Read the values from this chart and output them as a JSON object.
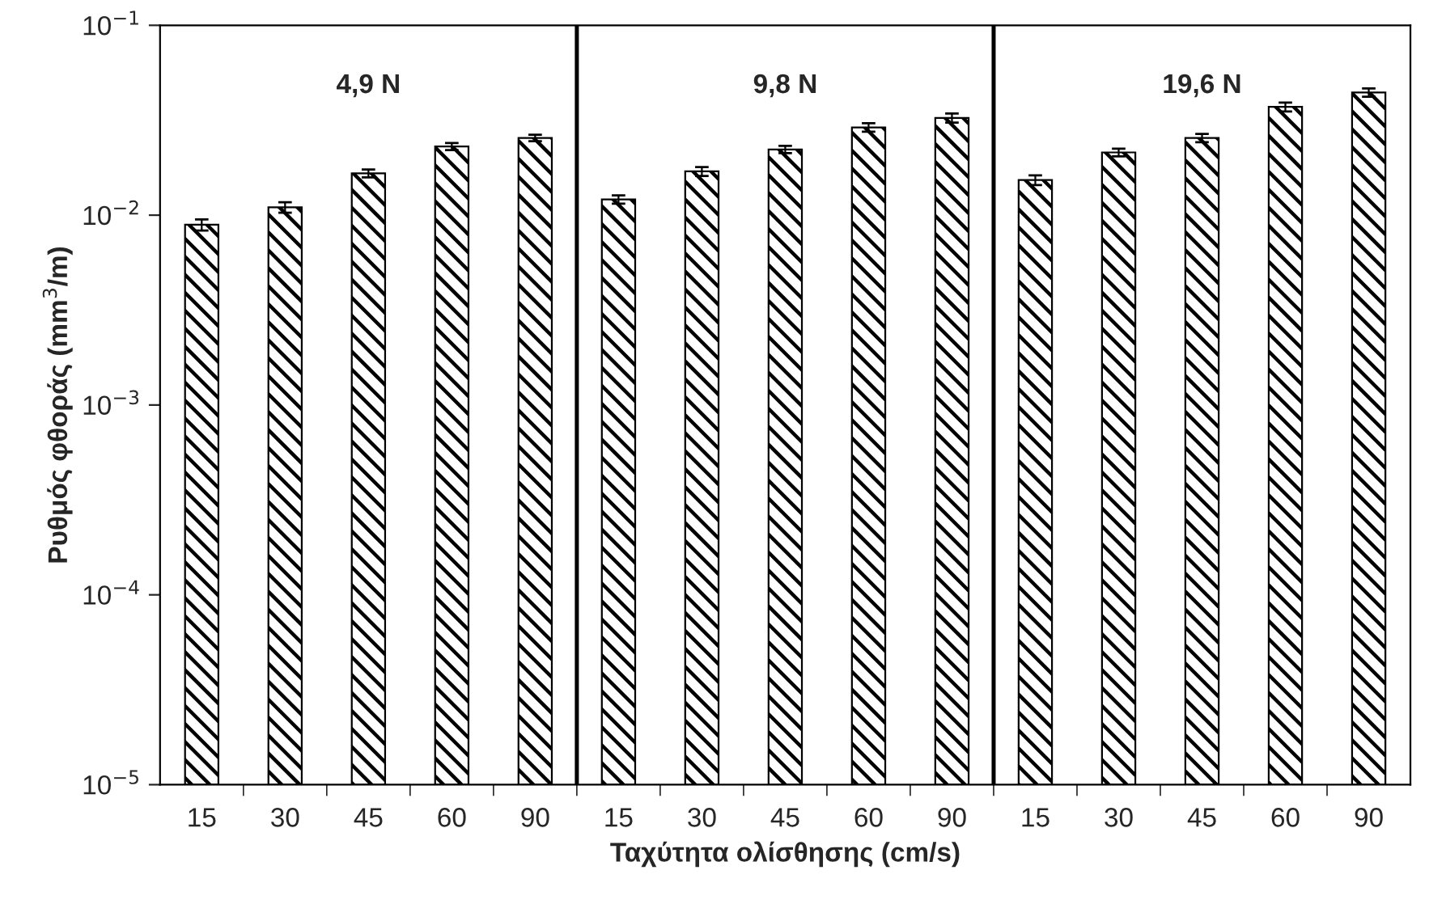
{
  "chart_data": {
    "type": "bar",
    "log": "y",
    "xlabel": "Ταχύτητα ολίσθησης (cm/s)",
    "ylabel": "Ρυθμός φθοράς (mm$^{3}$/m)",
    "categories": [
      "15",
      "30",
      "45",
      "60",
      "90",
      "15",
      "30",
      "45",
      "60",
      "90",
      "15",
      "30",
      "45",
      "60",
      "90"
    ],
    "values": [
      0.0089,
      0.011,
      0.0166,
      0.023,
      0.0255,
      0.0121,
      0.017,
      0.0222,
      0.029,
      0.0325,
      0.0153,
      0.0214,
      0.0255,
      0.0372,
      0.0443
    ],
    "errors": [
      0.0006,
      0.0007,
      0.0008,
      0.001,
      0.001,
      0.0006,
      0.0009,
      0.001,
      0.0015,
      0.0018,
      0.0009,
      0.001,
      0.0013,
      0.002,
      0.0022
    ],
    "color": "#000000",
    "ylim": [
      1e-05,
      0.1
    ],
    "yticks": [
      {
        "value": 1e-05,
        "label": "10$^{−5}$"
      },
      {
        "value": 0.0001,
        "label": "10$^{−4}$"
      },
      {
        "value": 0.001,
        "label": "10$^{−3}$"
      },
      {
        "value": 0.01,
        "label": "10$^{−2}$"
      },
      {
        "value": 0.1,
        "label": "10$^{−1}$"
      }
    ],
    "annotations": [
      "4,9 N",
      "9,8 N",
      "19,6 N"
    ],
    "grid": false,
    "legend": false
  }
}
